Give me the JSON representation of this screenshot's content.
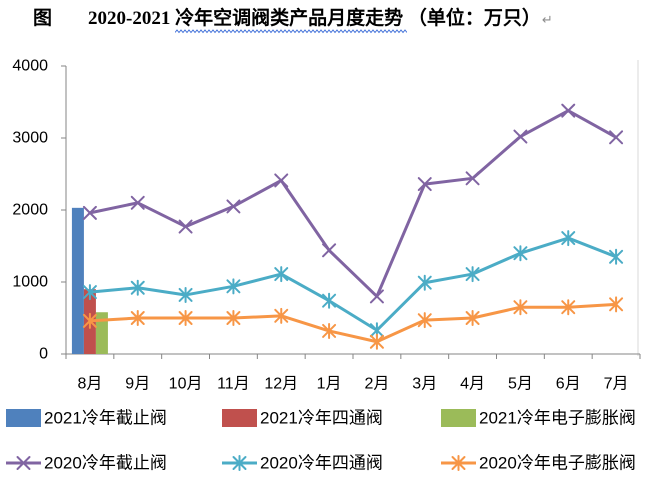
{
  "chart_data": {
    "type": "line",
    "figure_label": "图",
    "title": "2020-2021 冷年空调阀类产品月度走势 （单位：万只）",
    "categories": [
      "8月",
      "9月",
      "10月",
      "11月",
      "12月",
      "1月",
      "2月",
      "3月",
      "4月",
      "5月",
      "6月",
      "7月"
    ],
    "ylim": [
      0,
      4000
    ],
    "y_ticks": [
      0,
      1000,
      2000,
      3000,
      4000
    ],
    "grid": false,
    "legend_position": "bottom",
    "series": [
      {
        "name": "2021冷年截止阀",
        "type": "bar",
        "color": "#4F81BD",
        "values": [
          2030,
          null,
          null,
          null,
          null,
          null,
          null,
          null,
          null,
          null,
          null,
          null
        ]
      },
      {
        "name": "2021冷年四通阀",
        "type": "bar",
        "color": "#C0504D",
        "values": [
          900,
          null,
          null,
          null,
          null,
          null,
          null,
          null,
          null,
          null,
          null,
          null
        ]
      },
      {
        "name": "2021冷年电子膨胀阀",
        "type": "bar",
        "color": "#9BBB59",
        "values": [
          580,
          null,
          null,
          null,
          null,
          null,
          null,
          null,
          null,
          null,
          null,
          null
        ]
      },
      {
        "name": "2020冷年截止阀",
        "type": "line",
        "color": "#8064A2",
        "marker": "x",
        "values": [
          1960,
          2100,
          1770,
          2050,
          2410,
          1440,
          800,
          2360,
          2440,
          3020,
          3380,
          3010
        ]
      },
      {
        "name": "2020冷年四通阀",
        "type": "line",
        "color": "#4BACC6",
        "marker": "star",
        "values": [
          860,
          920,
          820,
          940,
          1110,
          740,
          330,
          990,
          1110,
          1400,
          1610,
          1350
        ]
      },
      {
        "name": "2020冷年电子膨胀阀",
        "type": "line",
        "color": "#F79646",
        "marker": "star",
        "values": [
          460,
          500,
          500,
          500,
          530,
          320,
          170,
          470,
          500,
          650,
          650,
          690
        ]
      }
    ]
  },
  "document": {
    "paragraph_mark": "↵"
  }
}
